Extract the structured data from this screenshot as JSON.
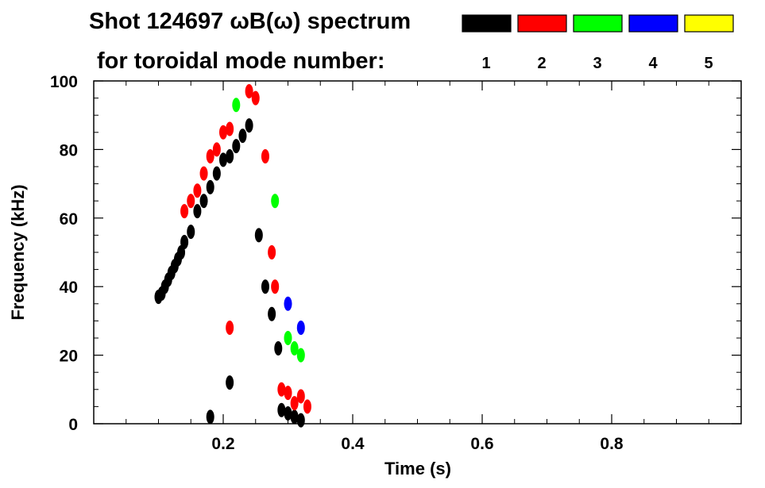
{
  "chart_data": {
    "type": "scatter",
    "title": "Shot 124697 ωB(ω) spectrum",
    "subtitle": "for toroidal mode number:",
    "xlabel": "Time (s)",
    "ylabel": "Frequency (kHz)",
    "xlim": [
      0.0,
      1.0
    ],
    "ylim": [
      0,
      100
    ],
    "x_ticks": [
      0.2,
      0.4,
      0.6,
      0.8
    ],
    "x_tick_labels": [
      "0.2",
      "0.4",
      "0.6",
      "0.8"
    ],
    "y_ticks": [
      0,
      20,
      40,
      60,
      80,
      100
    ],
    "y_tick_labels": [
      "0",
      "20",
      "40",
      "60",
      "80",
      "100"
    ],
    "legend_position": "top-right",
    "series": [
      {
        "name": "1",
        "color": "#000000",
        "points": [
          [
            0.1,
            37
          ],
          [
            0.105,
            38
          ],
          [
            0.11,
            40
          ],
          [
            0.115,
            42
          ],
          [
            0.12,
            44
          ],
          [
            0.125,
            46
          ],
          [
            0.13,
            48
          ],
          [
            0.135,
            50
          ],
          [
            0.14,
            53
          ],
          [
            0.15,
            56
          ],
          [
            0.16,
            62
          ],
          [
            0.17,
            65
          ],
          [
            0.18,
            69
          ],
          [
            0.19,
            73
          ],
          [
            0.2,
            77
          ],
          [
            0.21,
            78
          ],
          [
            0.22,
            81
          ],
          [
            0.23,
            84
          ],
          [
            0.24,
            87
          ],
          [
            0.255,
            55
          ],
          [
            0.265,
            40
          ],
          [
            0.275,
            32
          ],
          [
            0.285,
            22
          ],
          [
            0.29,
            4
          ],
          [
            0.3,
            3
          ],
          [
            0.31,
            2
          ],
          [
            0.32,
            1
          ],
          [
            0.18,
            2
          ],
          [
            0.21,
            12
          ]
        ]
      },
      {
        "name": "2",
        "color": "#ff0000",
        "points": [
          [
            0.14,
            62
          ],
          [
            0.15,
            65
          ],
          [
            0.16,
            68
          ],
          [
            0.17,
            73
          ],
          [
            0.18,
            78
          ],
          [
            0.19,
            80
          ],
          [
            0.2,
            85
          ],
          [
            0.21,
            86
          ],
          [
            0.24,
            97
          ],
          [
            0.25,
            95
          ],
          [
            0.265,
            78
          ],
          [
            0.275,
            50
          ],
          [
            0.28,
            40
          ],
          [
            0.29,
            10
          ],
          [
            0.3,
            9
          ],
          [
            0.31,
            6
          ],
          [
            0.32,
            8
          ],
          [
            0.33,
            5
          ],
          [
            0.21,
            28
          ]
        ]
      },
      {
        "name": "3",
        "color": "#00ff00",
        "points": [
          [
            0.22,
            93
          ],
          [
            0.28,
            65
          ],
          [
            0.3,
            25
          ],
          [
            0.31,
            22
          ],
          [
            0.32,
            20
          ]
        ]
      },
      {
        "name": "4",
        "color": "#0000ff",
        "points": [
          [
            0.3,
            35
          ],
          [
            0.32,
            28
          ]
        ]
      },
      {
        "name": "5",
        "color": "#ffff00",
        "points": []
      }
    ]
  }
}
